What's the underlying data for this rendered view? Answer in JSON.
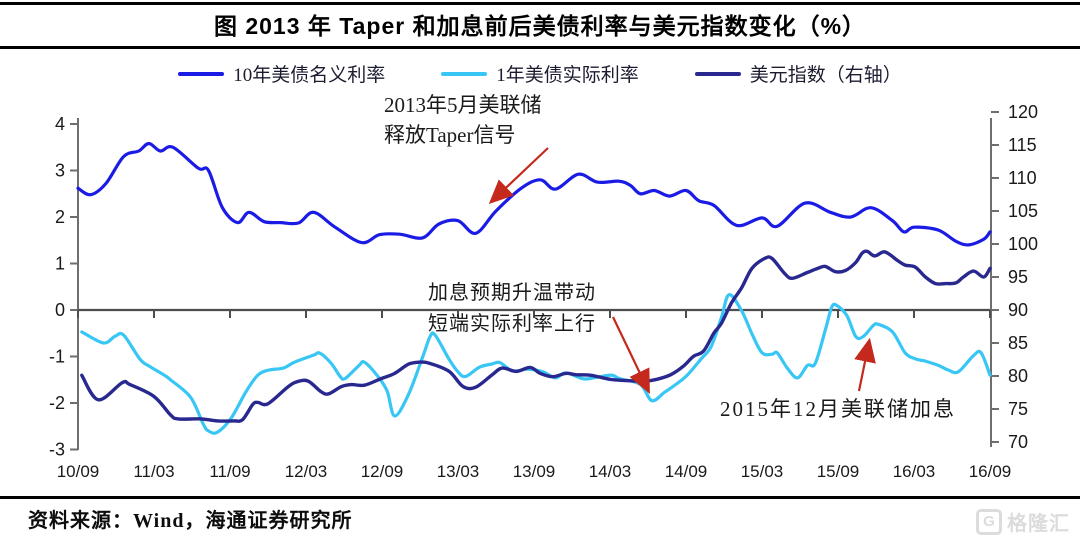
{
  "title": "图  2013 年 Taper 和加息前后美债利率与美元指数变化（%）",
  "source": "资料来源：Wind，海通证券研究所",
  "watermark": {
    "icon": "G",
    "text": "格隆汇"
  },
  "colors": {
    "nominal10y": "#1b1be6",
    "real1y": "#38c6f4",
    "usd_index": "#28288f",
    "arrow": "#c5281c",
    "axis": "#6e6e6e",
    "zero_line": "#4d4d4d",
    "tick_text": "#1a1a1a"
  },
  "legend": {
    "items": [
      {
        "label": "10年美债名义利率",
        "color": "#1b1be6"
      },
      {
        "label": "1年美债实际利率",
        "color": "#38c6f4"
      },
      {
        "label": "美元指数（右轴）",
        "color": "#28288f"
      }
    ]
  },
  "annotations": [
    {
      "lines": [
        "2013年5月美联储",
        "释放Taper信号"
      ]
    },
    {
      "lines": [
        "加息预期升温带动",
        "短端实际利率上行"
      ]
    },
    {
      "lines": [
        "2015年12月美联储加息"
      ]
    }
  ],
  "chart_data": {
    "type": "line",
    "title": "2013 年 Taper 和加息前后美债利率与美元指数变化（%）",
    "x_unit": "months since 2010/09, ticks every 6 months",
    "x_tick_labels": [
      "10/09",
      "11/03",
      "11/09",
      "12/03",
      "12/09",
      "13/03",
      "13/09",
      "14/03",
      "14/09",
      "15/03",
      "15/09",
      "16/03",
      "16/09"
    ],
    "left_axis": {
      "min": -3,
      "max": 4,
      "ticks": [
        4,
        3,
        2,
        1,
        0,
        -1,
        -2,
        -3
      ]
    },
    "right_axis": {
      "min": 70,
      "max": 120,
      "ticks": [
        120,
        115,
        110,
        105,
        100,
        95,
        90,
        85,
        80,
        75,
        70
      ],
      "label": "美元指数（右轴）"
    },
    "grid": false,
    "legend_position": "top",
    "series": [
      {
        "name": "10年美债名义利率",
        "axis": "left",
        "color": "#1b1be6",
        "points": [
          [
            0,
            2.62
          ],
          [
            1,
            2.48
          ],
          [
            2.2,
            2.72
          ],
          [
            3.6,
            3.3
          ],
          [
            4.8,
            3.42
          ],
          [
            5.6,
            3.58
          ],
          [
            6.5,
            3.42
          ],
          [
            7.5,
            3.5
          ],
          [
            9.5,
            3.05
          ],
          [
            10.3,
            3.0
          ],
          [
            11.4,
            2.2
          ],
          [
            12.6,
            1.88
          ],
          [
            13.5,
            2.1
          ],
          [
            14.7,
            1.9
          ],
          [
            16,
            1.88
          ],
          [
            17.4,
            1.87
          ],
          [
            18.6,
            2.1
          ],
          [
            20.3,
            1.78
          ],
          [
            22.4,
            1.45
          ],
          [
            23.8,
            1.62
          ],
          [
            25.4,
            1.63
          ],
          [
            27.2,
            1.55
          ],
          [
            28.5,
            1.85
          ],
          [
            30,
            1.92
          ],
          [
            31.4,
            1.65
          ],
          [
            33,
            2.13
          ],
          [
            35,
            2.62
          ],
          [
            36.5,
            2.8
          ],
          [
            37.7,
            2.6
          ],
          [
            39.5,
            2.92
          ],
          [
            41,
            2.75
          ],
          [
            42.7,
            2.77
          ],
          [
            43.6,
            2.68
          ],
          [
            44.4,
            2.5
          ],
          [
            45.5,
            2.57
          ],
          [
            46.7,
            2.45
          ],
          [
            48,
            2.57
          ],
          [
            49,
            2.35
          ],
          [
            50.2,
            2.25
          ],
          [
            52,
            1.82
          ],
          [
            54,
            1.98
          ],
          [
            55.2,
            1.8
          ],
          [
            57.4,
            2.3
          ],
          [
            59.4,
            2.1
          ],
          [
            61,
            2.0
          ],
          [
            62.6,
            2.2
          ],
          [
            64.3,
            1.92
          ],
          [
            65.2,
            1.68
          ],
          [
            66,
            1.78
          ],
          [
            67.9,
            1.72
          ],
          [
            69.3,
            1.48
          ],
          [
            70.3,
            1.4
          ],
          [
            71.5,
            1.52
          ],
          [
            72,
            1.68
          ]
        ]
      },
      {
        "name": "1年美债实际利率",
        "axis": "left",
        "color": "#38c6f4",
        "points": [
          [
            0.3,
            -0.47
          ],
          [
            2,
            -0.71
          ],
          [
            2.9,
            -0.57
          ],
          [
            3.6,
            -0.54
          ],
          [
            4.9,
            -1.06
          ],
          [
            5.7,
            -1.22
          ],
          [
            6.8,
            -1.4
          ],
          [
            7.3,
            -1.5
          ],
          [
            8.9,
            -1.88
          ],
          [
            9.9,
            -2.46
          ],
          [
            10.3,
            -2.6
          ],
          [
            11,
            -2.63
          ],
          [
            12.1,
            -2.32
          ],
          [
            13.3,
            -1.74
          ],
          [
            14.2,
            -1.4
          ],
          [
            15.1,
            -1.29
          ],
          [
            16.2,
            -1.25
          ],
          [
            17.1,
            -1.12
          ],
          [
            18.6,
            -0.97
          ],
          [
            19.1,
            -0.93
          ],
          [
            20,
            -1.15
          ],
          [
            20.7,
            -1.43
          ],
          [
            21.1,
            -1.47
          ],
          [
            22.2,
            -1.19
          ],
          [
            22.6,
            -1.12
          ],
          [
            23.6,
            -1.4
          ],
          [
            24.4,
            -1.74
          ],
          [
            25,
            -2.28
          ],
          [
            26.1,
            -1.81
          ],
          [
            27.2,
            -1.02
          ],
          [
            27.8,
            -0.57
          ],
          [
            28.2,
            -0.54
          ],
          [
            29.3,
            -1.06
          ],
          [
            30,
            -1.33
          ],
          [
            30.6,
            -1.43
          ],
          [
            31.7,
            -1.23
          ],
          [
            32.7,
            -1.16
          ],
          [
            33.3,
            -1.13
          ],
          [
            34.3,
            -1.31
          ],
          [
            35.5,
            -1.27
          ],
          [
            36.7,
            -1.33
          ],
          [
            37.7,
            -1.46
          ],
          [
            38.5,
            -1.35
          ],
          [
            39.9,
            -1.48
          ],
          [
            40.9,
            -1.45
          ],
          [
            42.1,
            -1.4
          ],
          [
            42.8,
            -1.48
          ],
          [
            44.4,
            -1.6
          ],
          [
            45.3,
            -1.95
          ],
          [
            46.3,
            -1.77
          ],
          [
            47.2,
            -1.6
          ],
          [
            48.1,
            -1.4
          ],
          [
            49.2,
            -1.05
          ],
          [
            50,
            -0.78
          ],
          [
            50.8,
            -0.16
          ],
          [
            51.4,
            0.33
          ],
          [
            52.4,
            -0.02
          ],
          [
            53.2,
            -0.51
          ],
          [
            54,
            -0.92
          ],
          [
            54.8,
            -0.95
          ],
          [
            55.2,
            -0.92
          ],
          [
            56,
            -1.25
          ],
          [
            56.8,
            -1.46
          ],
          [
            57.6,
            -1.19
          ],
          [
            58.2,
            -1.15
          ],
          [
            59,
            -0.43
          ],
          [
            59.5,
            0.06
          ],
          [
            59.9,
            0.1
          ],
          [
            60.7,
            -0.12
          ],
          [
            61.4,
            -0.57
          ],
          [
            62,
            -0.57
          ],
          [
            62.8,
            -0.33
          ],
          [
            63.2,
            -0.31
          ],
          [
            64.3,
            -0.47
          ],
          [
            65.3,
            -0.92
          ],
          [
            66.1,
            -1.05
          ],
          [
            66.9,
            -1.1
          ],
          [
            67.9,
            -1.19
          ],
          [
            68.7,
            -1.29
          ],
          [
            69.5,
            -1.33
          ],
          [
            70.7,
            -0.98
          ],
          [
            71.3,
            -0.92
          ],
          [
            72,
            -1.4
          ]
        ]
      },
      {
        "name": "美元指数（右轴）",
        "axis": "right",
        "color": "#28288f",
        "points": [
          [
            0.3,
            80.1
          ],
          [
            1.6,
            76.4
          ],
          [
            3.5,
            79.0
          ],
          [
            4.1,
            78.7
          ],
          [
            6,
            76.9
          ],
          [
            7.3,
            74.1
          ],
          [
            7.9,
            73.5
          ],
          [
            9.7,
            73.5
          ],
          [
            11,
            73.2
          ],
          [
            12.3,
            73.2
          ],
          [
            13,
            73.4
          ],
          [
            13.8,
            75.7
          ],
          [
            14.2,
            76.0
          ],
          [
            15,
            75.8
          ],
          [
            16.6,
            78.4
          ],
          [
            17.4,
            79.2
          ],
          [
            18.2,
            79.2
          ],
          [
            19.2,
            77.6
          ],
          [
            19.8,
            77.3
          ],
          [
            20.8,
            78.4
          ],
          [
            21.6,
            78.7
          ],
          [
            22.6,
            78.6
          ],
          [
            23.8,
            79.5
          ],
          [
            25,
            80.4
          ],
          [
            26.1,
            81.8
          ],
          [
            27,
            82.1
          ],
          [
            27.8,
            81.9
          ],
          [
            29.3,
            80.7
          ],
          [
            30.4,
            78.4
          ],
          [
            31.4,
            78.3
          ],
          [
            32.7,
            80.2
          ],
          [
            33.5,
            81.2
          ],
          [
            34.6,
            80.7
          ],
          [
            35.7,
            81.3
          ],
          [
            36.5,
            80.4
          ],
          [
            37.5,
            79.9
          ],
          [
            38.5,
            80.4
          ],
          [
            39.3,
            80.2
          ],
          [
            40.5,
            80.1
          ],
          [
            42,
            79.5
          ],
          [
            43.3,
            79.3
          ],
          [
            44.7,
            79.2
          ],
          [
            45.7,
            79.5
          ],
          [
            46.8,
            80.2
          ],
          [
            47.8,
            81.5
          ],
          [
            48.6,
            83.0
          ],
          [
            49.4,
            83.8
          ],
          [
            50.2,
            86.5
          ],
          [
            50.8,
            88.0
          ],
          [
            51.6,
            91.1
          ],
          [
            52.4,
            93.4
          ],
          [
            53.2,
            96.3
          ],
          [
            54.2,
            97.8
          ],
          [
            54.8,
            97.8
          ],
          [
            55.8,
            95.5
          ],
          [
            56.4,
            94.8
          ],
          [
            57.6,
            95.7
          ],
          [
            58.4,
            96.3
          ],
          [
            59,
            96.6
          ],
          [
            59.8,
            95.8
          ],
          [
            60.6,
            96.0
          ],
          [
            61.4,
            97.2
          ],
          [
            61.9,
            98.6
          ],
          [
            62.3,
            98.9
          ],
          [
            62.9,
            98.2
          ],
          [
            63.7,
            98.8
          ],
          [
            64.7,
            97.5
          ],
          [
            65.3,
            96.8
          ],
          [
            66.1,
            96.5
          ],
          [
            66.9,
            95.0
          ],
          [
            67.7,
            94.0
          ],
          [
            68.5,
            94.0
          ],
          [
            69.3,
            94.1
          ],
          [
            69.9,
            95.0
          ],
          [
            70.7,
            95.9
          ],
          [
            71.5,
            95.0
          ],
          [
            72,
            96.3
          ]
        ]
      }
    ]
  }
}
